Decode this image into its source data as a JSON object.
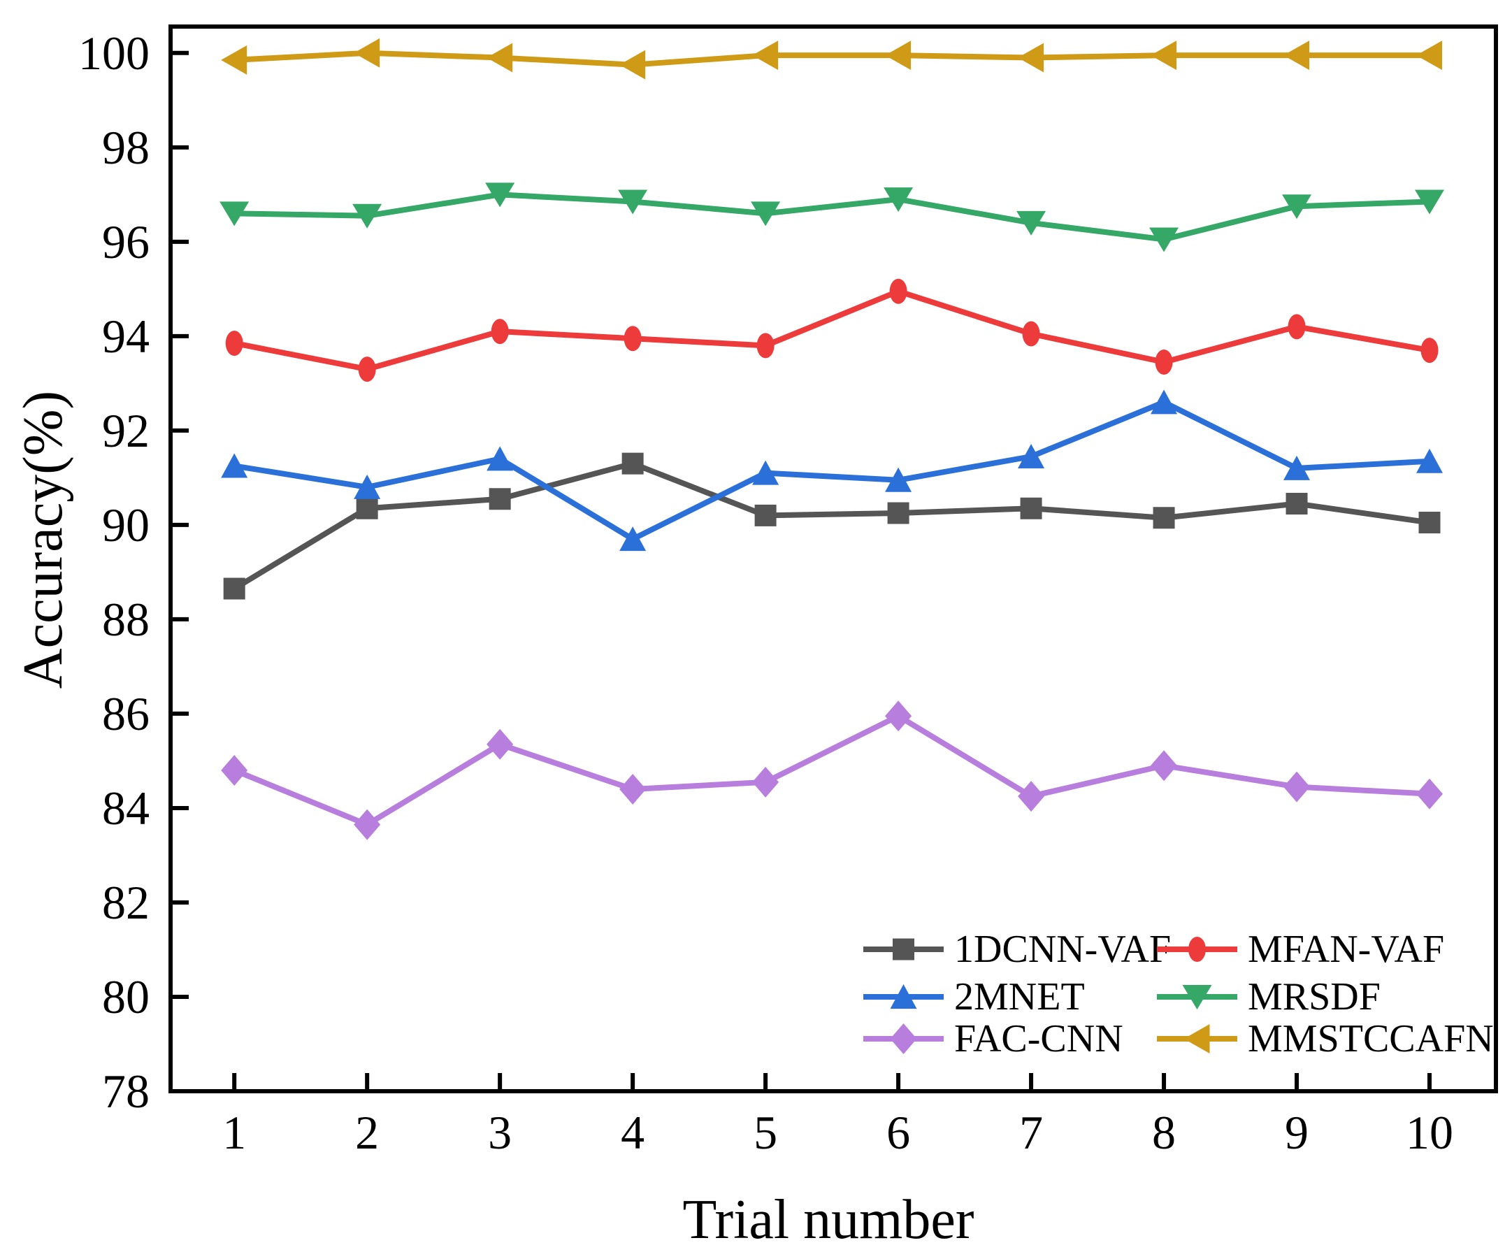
{
  "figure": {
    "background": "#ffffff",
    "frame_color": "#000000"
  },
  "chart_data": {
    "type": "line",
    "title": "",
    "xlabel": "Trial number",
    "ylabel": "Accuracy(%)",
    "grid": false,
    "legend_position": "inside-bottom-right",
    "xlim": [
      0.52,
      10.5
    ],
    "ylim": [
      78,
      100.56
    ],
    "x": [
      1,
      2,
      3,
      4,
      5,
      6,
      7,
      8,
      9,
      10
    ],
    "x_tick_labels": [
      "1",
      "2",
      "3",
      "4",
      "5",
      "6",
      "7",
      "8",
      "9",
      "10"
    ],
    "y_ticks": [
      78,
      80,
      82,
      84,
      86,
      88,
      90,
      92,
      94,
      96,
      98,
      100
    ],
    "y_tick_labels": [
      "78",
      "80",
      "82",
      "84",
      "86",
      "88",
      "90",
      "92",
      "94",
      "96",
      "98",
      "100"
    ],
    "series": [
      {
        "name": "1DCNN-VAF",
        "marker": "square",
        "color": "#555555",
        "values": [
          88.65,
          90.35,
          90.55,
          91.3,
          90.2,
          90.25,
          90.35,
          90.15,
          90.45,
          90.05
        ]
      },
      {
        "name": "MFAN-VAF",
        "marker": "circle",
        "color": "#ed3a3a",
        "values": [
          93.85,
          93.3,
          94.1,
          93.95,
          93.8,
          94.95,
          94.05,
          93.45,
          94.2,
          93.7
        ]
      },
      {
        "name": "2MNET",
        "marker": "triangle-up",
        "color": "#2b70d8",
        "values": [
          91.25,
          90.8,
          91.4,
          89.7,
          91.1,
          90.95,
          91.45,
          92.6,
          91.2,
          91.35
        ]
      },
      {
        "name": "MRSDF",
        "marker": "triangle-down",
        "color": "#35a766",
        "values": [
          96.6,
          96.55,
          97.0,
          96.85,
          96.6,
          96.9,
          96.4,
          96.05,
          96.75,
          96.85
        ]
      },
      {
        "name": "FAC-CNN",
        "marker": "diamond",
        "color": "#b77edd",
        "values": [
          84.8,
          83.65,
          85.35,
          84.4,
          84.55,
          85.95,
          84.25,
          84.9,
          84.45,
          84.3
        ]
      },
      {
        "name": "MMSTCCAFN",
        "marker": "triangle-left",
        "color": "#cf9b16",
        "values": [
          99.85,
          100.0,
          99.9,
          99.75,
          99.95,
          99.95,
          99.9,
          99.95,
          99.95,
          99.95
        ]
      }
    ],
    "legend_columns": [
      [
        "1DCNN-VAF",
        "2MNET",
        "FAC-CNN"
      ],
      [
        "MFAN-VAF",
        "MRSDF",
        "MMSTCCAFN"
      ]
    ]
  }
}
